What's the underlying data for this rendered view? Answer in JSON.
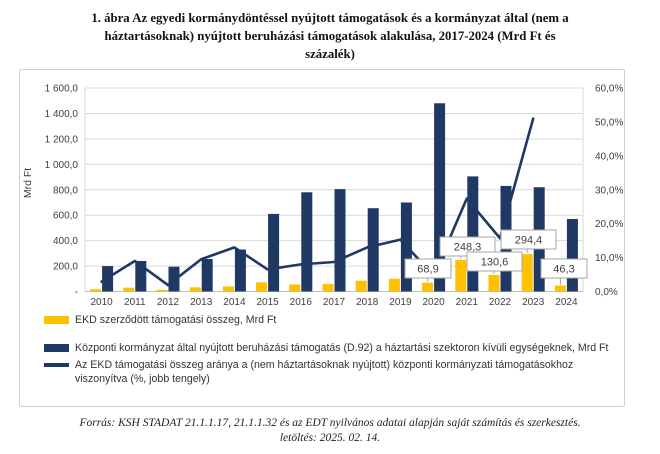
{
  "title": {
    "lines": [
      "1. ábra Az egyedi kormánydöntéssel nyújtott támogatások és a kormányzat által (nem a",
      "háztartásoknak) nyújtott beruházási támogatások alakulása, 2017-2024 (Mrd Ft és",
      "százalék)"
    ]
  },
  "legend": {
    "items": [
      {
        "label": "EKD szerződött támogatási összeg, Mrd Ft",
        "swatch": "bar",
        "color": "#FFC000"
      },
      {
        "label": "Központi kormányzat által nyújtott beruházási támogatás (D.92) a háztartási szektoron kívüli egységeknek, Mrd Ft",
        "swatch": "bar",
        "color": "#1F3864"
      },
      {
        "label": "Az EKD támogatási összeg aránya a (nem háztartásoknak nyújtott) központi kormányzati támogatásokhoz viszonyítva (%, jobb tengely)",
        "swatch": "line",
        "color": "#1F3864"
      }
    ]
  },
  "footer": {
    "line1": "Forrás: KSH STADAT 21.1.1.17, 21.1.1.32 és az EDT nyilvános adatai alapján saját számítás és szerkesztés.",
    "line2": "letöltés: 2025. 02. 14."
  },
  "chart_data": {
    "type": "bar",
    "x": [
      "2010",
      "2011",
      "2012",
      "2013",
      "2014",
      "2015",
      "2016",
      "2017",
      "2018",
      "2019",
      "2020",
      "2021",
      "2022",
      "2023",
      "2024"
    ],
    "series": [
      {
        "name": "EKD szerződött támogatási összeg, Mrd Ft",
        "type": "bar",
        "axis": "left",
        "color": "#FFC000",
        "values": [
          18,
          30,
          13,
          33,
          40,
          72,
          55,
          60,
          85,
          100,
          68.9,
          248.3,
          130.6,
          294.4,
          46.3
        ]
      },
      {
        "name": "Központi kormányzat által nyújtott beruházási támogatás (D.92) a háztartási szektoron kívüli egységeknek, Mrd Ft",
        "type": "bar",
        "axis": "left",
        "color": "#1F3864",
        "values": [
          200,
          240,
          195,
          255,
          330,
          610,
          780,
          805,
          655,
          700,
          1480,
          905,
          830,
          820,
          570
        ]
      },
      {
        "name": "Az EKD támogatási összeg aránya a (nem háztartásoknak nyújtott) központi kormányzati támogatásokhoz viszonyítva (%, jobb tengely)",
        "type": "line",
        "axis": "right",
        "color": "#1F3864",
        "values": [
          2.9,
          9,
          1.9,
          9.5,
          13,
          6.5,
          8,
          8.7,
          13,
          15.3,
          4.7,
          27.4,
          15.7,
          51,
          null
        ]
      }
    ],
    "data_labels": [
      {
        "x_index": 10,
        "text": "68,9"
      },
      {
        "x_index": 11,
        "text": "248,3"
      },
      {
        "x_index": 12,
        "text": "130,6"
      },
      {
        "x_index": 13,
        "text": "294,4"
      },
      {
        "x_index": 14,
        "text": "46,3"
      }
    ],
    "left_axis": {
      "title": "Mrd Ft",
      "min": 0,
      "max": 1600,
      "step": 200,
      "tick_labels": [
        "1 600,0",
        "1 400,0",
        "1 200,0",
        "1 000,0",
        "800,0",
        "600,0",
        "400,0",
        "200,0",
        "-"
      ]
    },
    "right_axis": {
      "min": 0,
      "max": 60,
      "step": 10,
      "tick_labels": [
        "60,0%",
        "50,0%",
        "40,0%",
        "30,0%",
        "20,0%",
        "10,0%",
        "0,0%"
      ]
    },
    "grid": true,
    "legend_position": "bottom"
  }
}
